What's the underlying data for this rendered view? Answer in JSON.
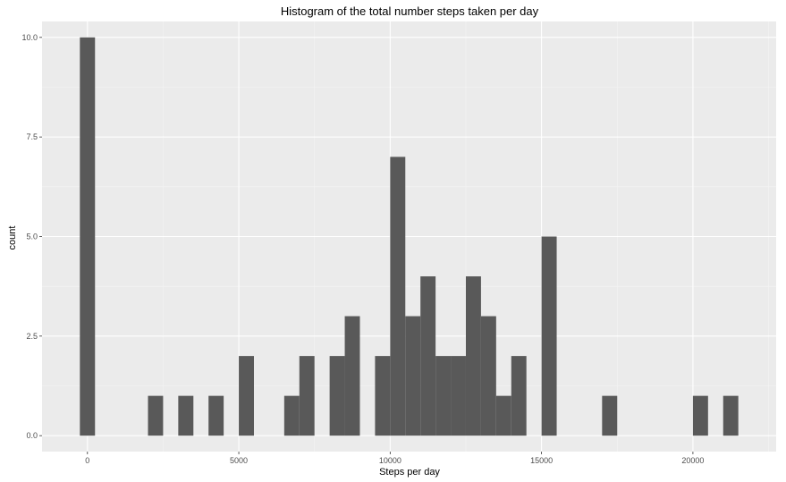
{
  "chart_data": {
    "type": "histogram",
    "title": "Histogram of the total number steps taken per day",
    "xlabel": "Steps per day",
    "ylabel": "count",
    "binwidth": 500,
    "xlim": [
      -1500,
      22750
    ],
    "ylim": [
      -0.4,
      10.4
    ],
    "x_ticks": [
      0,
      5000,
      10000,
      15000,
      20000
    ],
    "x_tick_labels": [
      "0",
      "5000",
      "10000",
      "15000",
      "20000"
    ],
    "y_ticks": [
      0,
      2.5,
      5,
      7.5,
      10
    ],
    "y_tick_labels": [
      "0.0",
      "2.5",
      "5.0",
      "7.5",
      "10.0"
    ],
    "bins": [
      {
        "x": 0,
        "count": 10
      },
      {
        "x": 2250,
        "count": 1
      },
      {
        "x": 3250,
        "count": 1
      },
      {
        "x": 4250,
        "count": 1
      },
      {
        "x": 5250,
        "count": 2
      },
      {
        "x": 6750,
        "count": 1
      },
      {
        "x": 7250,
        "count": 2
      },
      {
        "x": 8250,
        "count": 2
      },
      {
        "x": 8750,
        "count": 3
      },
      {
        "x": 9750,
        "count": 2
      },
      {
        "x": 10250,
        "count": 7
      },
      {
        "x": 10750,
        "count": 3
      },
      {
        "x": 11250,
        "count": 4
      },
      {
        "x": 11750,
        "count": 2
      },
      {
        "x": 12250,
        "count": 2
      },
      {
        "x": 12750,
        "count": 4
      },
      {
        "x": 13250,
        "count": 3
      },
      {
        "x": 13750,
        "count": 1
      },
      {
        "x": 14250,
        "count": 2
      },
      {
        "x": 15250,
        "count": 5
      },
      {
        "x": 17250,
        "count": 1
      },
      {
        "x": 20250,
        "count": 1
      },
      {
        "x": 21250,
        "count": 1
      }
    ],
    "grid": true,
    "colors": {
      "panel_background": "#ebebeb",
      "grid_major": "#ffffff",
      "grid_minor": "#f4f4f4",
      "bar_fill": "#595959",
      "tick_text": "#4d4d4d",
      "tick_mark": "#333333"
    }
  }
}
